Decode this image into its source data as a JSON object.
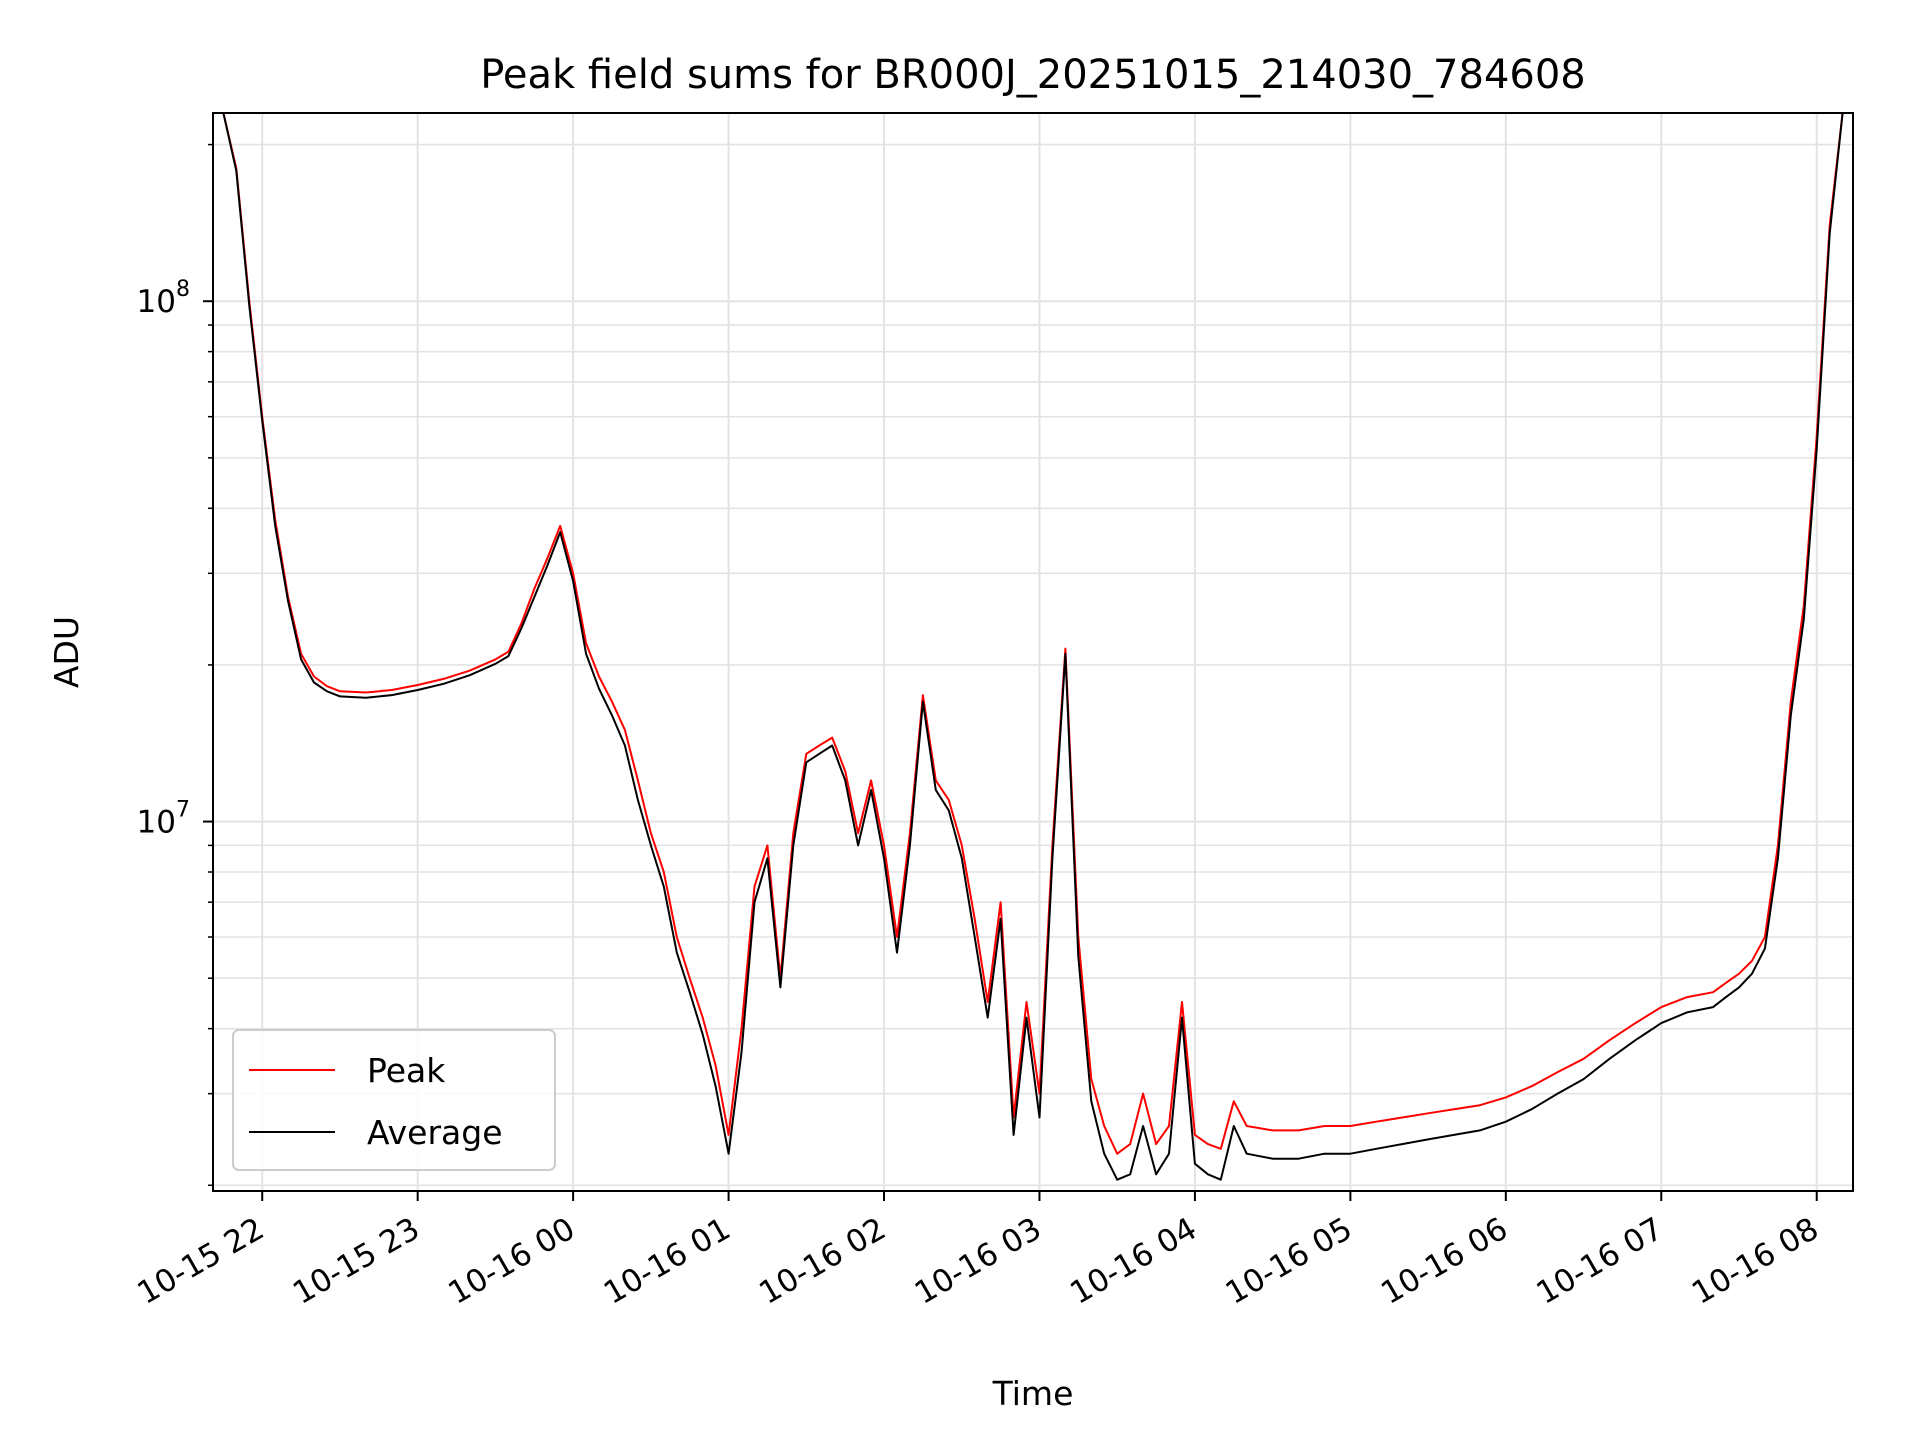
{
  "chart_data": {
    "type": "line",
    "title": "Peak field sums for BR000J_20251015_214030_784608",
    "xlabel": "Time",
    "ylabel": "ADU",
    "yscale": "log",
    "ylim": [
      1950000,
      230000000
    ],
    "xlim": [
      "2025-10-15 21:41",
      "2025-10-16 08:14"
    ],
    "x_ticks": [
      "10-15 22",
      "10-15 23",
      "10-16 00",
      "10-16 01",
      "10-16 02",
      "10-16 03",
      "10-16 04",
      "10-16 05",
      "10-16 06",
      "10-16 07",
      "10-16 08"
    ],
    "y_ticks": [
      {
        "base": "10",
        "exp": "7",
        "value": 10000000
      },
      {
        "base": "10",
        "exp": "8",
        "value": 100000000
      }
    ],
    "grid": true,
    "legend": "lower-left",
    "x": [
      "2025-10-15 21:45",
      "2025-10-15 21:50",
      "2025-10-15 21:55",
      "2025-10-15 22:00",
      "2025-10-15 22:05",
      "2025-10-15 22:10",
      "2025-10-15 22:15",
      "2025-10-15 22:20",
      "2025-10-15 22:25",
      "2025-10-15 22:30",
      "2025-10-15 22:40",
      "2025-10-15 22:50",
      "2025-10-15 23:00",
      "2025-10-15 23:10",
      "2025-10-15 23:20",
      "2025-10-15 23:30",
      "2025-10-15 23:35",
      "2025-10-15 23:40",
      "2025-10-15 23:45",
      "2025-10-15 23:50",
      "2025-10-15 23:55",
      "2025-10-16 00:00",
      "2025-10-16 00:05",
      "2025-10-16 00:10",
      "2025-10-16 00:15",
      "2025-10-16 00:20",
      "2025-10-16 00:25",
      "2025-10-16 00:30",
      "2025-10-16 00:35",
      "2025-10-16 00:40",
      "2025-10-16 00:45",
      "2025-10-16 00:50",
      "2025-10-16 00:55",
      "2025-10-16 01:00",
      "2025-10-16 01:05",
      "2025-10-16 01:10",
      "2025-10-16 01:15",
      "2025-10-16 01:20",
      "2025-10-16 01:25",
      "2025-10-16 01:30",
      "2025-10-16 01:35",
      "2025-10-16 01:40",
      "2025-10-16 01:45",
      "2025-10-16 01:50",
      "2025-10-16 01:55",
      "2025-10-16 02:00",
      "2025-10-16 02:05",
      "2025-10-16 02:10",
      "2025-10-16 02:15",
      "2025-10-16 02:20",
      "2025-10-16 02:25",
      "2025-10-16 02:30",
      "2025-10-16 02:35",
      "2025-10-16 02:40",
      "2025-10-16 02:45",
      "2025-10-16 02:50",
      "2025-10-16 02:55",
      "2025-10-16 03:00",
      "2025-10-16 03:05",
      "2025-10-16 03:10",
      "2025-10-16 03:15",
      "2025-10-16 03:20",
      "2025-10-16 03:25",
      "2025-10-16 03:30",
      "2025-10-16 03:35",
      "2025-10-16 03:40",
      "2025-10-16 03:45",
      "2025-10-16 03:50",
      "2025-10-16 03:55",
      "2025-10-16 04:00",
      "2025-10-16 04:05",
      "2025-10-16 04:10",
      "2025-10-16 04:15",
      "2025-10-16 04:20",
      "2025-10-16 04:30",
      "2025-10-16 04:40",
      "2025-10-16 04:50",
      "2025-10-16 05:00",
      "2025-10-16 05:10",
      "2025-10-16 05:20",
      "2025-10-16 05:30",
      "2025-10-16 05:40",
      "2025-10-16 05:50",
      "2025-10-16 06:00",
      "2025-10-16 06:10",
      "2025-10-16 06:20",
      "2025-10-16 06:30",
      "2025-10-16 06:40",
      "2025-10-16 06:50",
      "2025-10-16 07:00",
      "2025-10-16 07:10",
      "2025-10-16 07:20",
      "2025-10-16 07:25",
      "2025-10-16 07:30",
      "2025-10-16 07:35",
      "2025-10-16 07:40",
      "2025-10-16 07:45",
      "2025-10-16 07:50",
      "2025-10-16 07:55",
      "2025-10-16 08:00",
      "2025-10-16 08:05",
      "2025-10-16 08:10"
    ],
    "series": [
      {
        "name": "Peak",
        "color": "#ff0000",
        "values": [
          230000000,
          180000000,
          100000000,
          60000000,
          38000000,
          27000000,
          21000000,
          19000000,
          18200000,
          17800000,
          17700000,
          17900000,
          18300000,
          18800000,
          19500000,
          20500000,
          21200000,
          24000000,
          28000000,
          32000000,
          37000000,
          30000000,
          22000000,
          19000000,
          17000000,
          15000000,
          12000000,
          9500000,
          8000000,
          6000000,
          5000000,
          4200000,
          3400000,
          2500000,
          4000000,
          7500000,
          9000000,
          5000000,
          9500000,
          13500000,
          14000000,
          14500000,
          12500000,
          9500000,
          12000000,
          9000000,
          6000000,
          9500000,
          17500000,
          12000000,
          11000000,
          9000000,
          6500000,
          4500000,
          7000000,
          2700000,
          4500000,
          3000000,
          9000000,
          21500000,
          6000000,
          3200000,
          2600000,
          2300000,
          2400000,
          3000000,
          2400000,
          2600000,
          4500000,
          2500000,
          2400000,
          2350000,
          2900000,
          2600000,
          2550000,
          2550000,
          2600000,
          2600000,
          2650000,
          2700000,
          2750000,
          2800000,
          2850000,
          2950000,
          3100000,
          3300000,
          3500000,
          3800000,
          4100000,
          4400000,
          4600000,
          4700000,
          4900000,
          5100000,
          5400000,
          6000000,
          9000000,
          17000000,
          26000000,
          55000000,
          140000000,
          230000000
        ]
      },
      {
        "name": "Average",
        "color": "#000000",
        "values": [
          230000000,
          178000000,
          98000000,
          59000000,
          37000000,
          26500000,
          20500000,
          18500000,
          17800000,
          17400000,
          17300000,
          17500000,
          17900000,
          18400000,
          19100000,
          20100000,
          20800000,
          23500000,
          27000000,
          31000000,
          36000000,
          29000000,
          21000000,
          18000000,
          16000000,
          14000000,
          11000000,
          9000000,
          7500000,
          5600000,
          4700000,
          3900000,
          3100000,
          2300000,
          3600000,
          7000000,
          8500000,
          4800000,
          9000000,
          13000000,
          13500000,
          14000000,
          12000000,
          9000000,
          11500000,
          8500000,
          5600000,
          9000000,
          17000000,
          11500000,
          10500000,
          8500000,
          6000000,
          4200000,
          6500000,
          2500000,
          4200000,
          2700000,
          8500000,
          21000000,
          5500000,
          2900000,
          2300000,
          2050000,
          2100000,
          2600000,
          2100000,
          2300000,
          4200000,
          2200000,
          2100000,
          2050000,
          2600000,
          2300000,
          2250000,
          2250000,
          2300000,
          2300000,
          2350000,
          2400000,
          2450000,
          2500000,
          2550000,
          2650000,
          2800000,
          3000000,
          3200000,
          3500000,
          3800000,
          4100000,
          4300000,
          4400000,
          4600000,
          4800000,
          5100000,
          5700000,
          8500000,
          16000000,
          24500000,
          52000000,
          135000000,
          230000000
        ]
      }
    ]
  }
}
